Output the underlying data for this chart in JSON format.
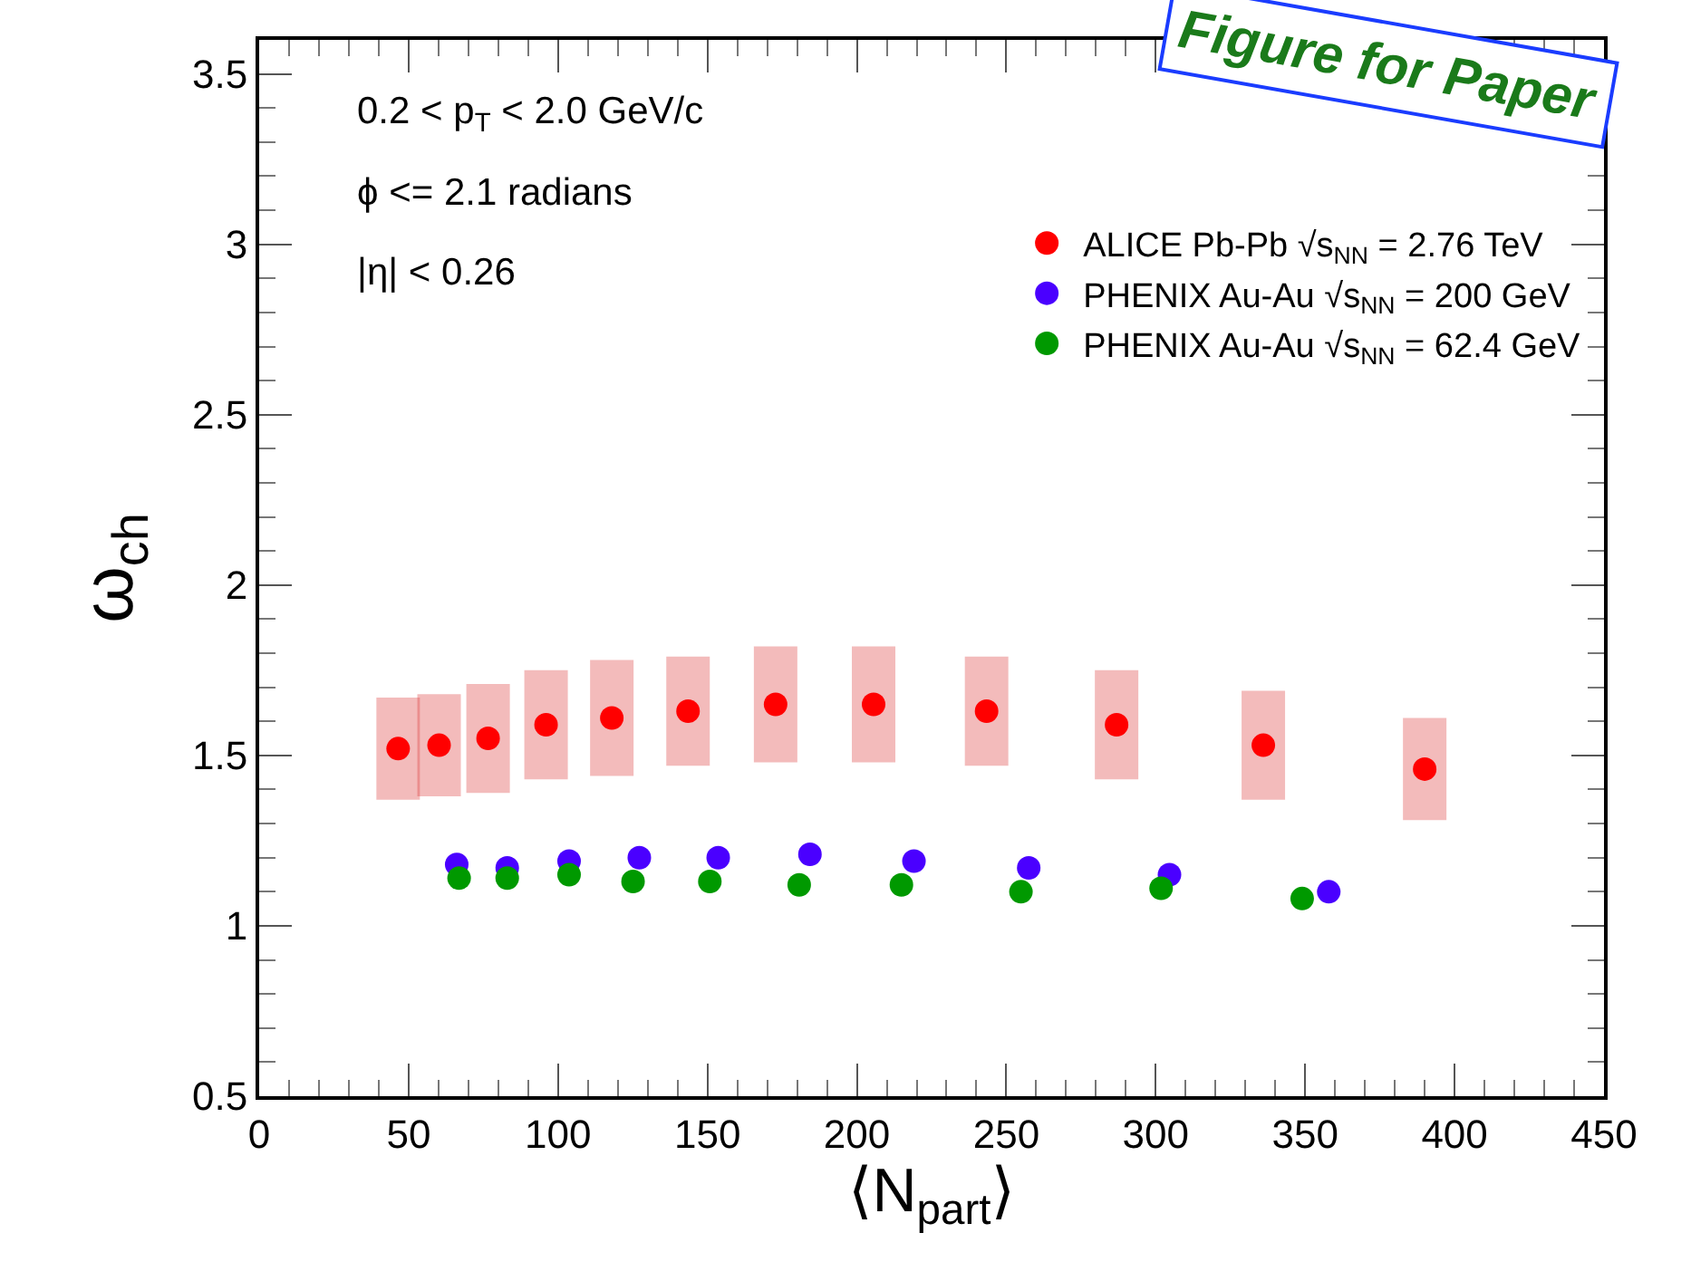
{
  "chart_data": {
    "type": "scatter",
    "xlabel": "⟨N$_{part}$⟩",
    "ylabel": "ω$_{ch}$",
    "xlim": [
      0,
      450
    ],
    "xticks": [
      0,
      50,
      100,
      150,
      200,
      250,
      300,
      350,
      400,
      450
    ],
    "ylim": [
      0.5,
      3.6
    ],
    "yticks": [
      0.5,
      1,
      1.5,
      2,
      2.5,
      3,
      3.5
    ],
    "grid": false,
    "legend": "top right",
    "marker": "circle",
    "annotations": [
      "0.2 < p$_{T}$ < 2.0 GeV/c",
      "ϕ <= 2.1 radians",
      "|η| < 0.26",
      "Figure for Paper"
    ],
    "series": [
      {
        "name": "ALICE Pb-Pb √s$_{NN}$ = 2.76 TeV",
        "color": "#ff0000",
        "x": [
          46.5,
          60.2,
          76.6,
          96,
          118,
          143.5,
          172.8,
          205.6,
          243.4,
          286.9,
          336,
          390
        ],
        "values": [
          1.52,
          1.53,
          1.55,
          1.59,
          1.61,
          1.63,
          1.65,
          1.65,
          1.63,
          1.59,
          1.53,
          1.46
        ],
        "errors": [
          0.15,
          0.15,
          0.16,
          0.16,
          0.17,
          0.16,
          0.17,
          0.17,
          0.16,
          0.16,
          0.16,
          0.15
        ]
      },
      {
        "name": "PHENIX Au-Au √s$_{NN}$ = 200 GeV",
        "color": "#4a00ff",
        "x": [
          66.1,
          83,
          103.7,
          127.2,
          153.6,
          184.3,
          219.1,
          257.5,
          304.6,
          357.9
        ],
        "values": [
          1.18,
          1.17,
          1.19,
          1.2,
          1.2,
          1.21,
          1.19,
          1.17,
          1.15,
          1.1
        ]
      },
      {
        "name": "PHENIX Au-Au √s$_{NN}$ = 62.4 GeV",
        "color": "#009900",
        "x": [
          66.9,
          83,
          103.7,
          125.1,
          150.8,
          180.7,
          214.9,
          254.9,
          301.8,
          349
        ],
        "values": [
          1.14,
          1.14,
          1.15,
          1.13,
          1.13,
          1.12,
          1.12,
          1.1,
          1.11,
          1.08
        ]
      }
    ]
  }
}
